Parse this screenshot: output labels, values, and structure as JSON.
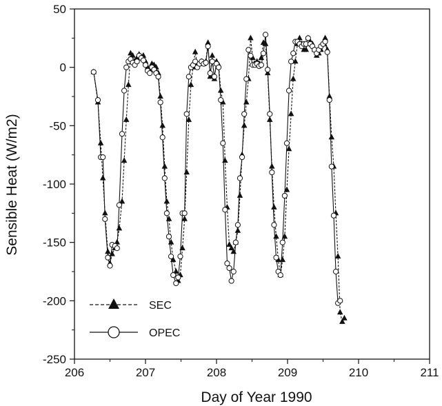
{
  "chart_data": {
    "type": "line",
    "title": "",
    "xlabel": "Day of Year 1990",
    "ylabel": "Sensible Heat (W/m2)",
    "xlim": [
      206,
      211
    ],
    "ylim": [
      -250,
      50
    ],
    "xticks": [
      206,
      207,
      208,
      209,
      210,
      211
    ],
    "yticks": [
      -250,
      -200,
      -150,
      -100,
      -50,
      0,
      50
    ],
    "grid": false,
    "legend": {
      "position": "lower-left"
    },
    "series": [
      {
        "name": "SEC",
        "marker": "filled-triangle",
        "line_style": "dashed",
        "color": "#111111",
        "points": [
          [
            206.27,
            -4
          ],
          [
            206.33,
            -30
          ],
          [
            206.37,
            -65
          ],
          [
            206.4,
            -95
          ],
          [
            206.43,
            -125
          ],
          [
            206.47,
            -158
          ],
          [
            206.5,
            -168
          ],
          [
            206.53,
            -160
          ],
          [
            206.57,
            -155
          ],
          [
            206.6,
            -150
          ],
          [
            206.63,
            -138
          ],
          [
            206.67,
            -115
          ],
          [
            206.7,
            -80
          ],
          [
            206.73,
            -45
          ],
          [
            206.76,
            -15
          ],
          [
            206.79,
            12
          ],
          [
            206.82,
            10
          ],
          [
            206.85,
            5
          ],
          [
            206.88,
            8
          ],
          [
            206.91,
            11
          ],
          [
            206.94,
            9
          ],
          [
            206.97,
            10
          ],
          [
            207.0,
            5
          ],
          [
            207.03,
            0
          ],
          [
            207.06,
            -3
          ],
          [
            207.09,
            3
          ],
          [
            207.12,
            2
          ],
          [
            207.15,
            0
          ],
          [
            207.18,
            -5
          ],
          [
            207.21,
            -25
          ],
          [
            207.24,
            -50
          ],
          [
            207.27,
            -85
          ],
          [
            207.3,
            -115
          ],
          [
            207.33,
            -130
          ],
          [
            207.36,
            -150
          ],
          [
            207.39,
            -165
          ],
          [
            207.43,
            -175
          ],
          [
            207.46,
            -183
          ],
          [
            207.49,
            -178
          ],
          [
            207.52,
            -155
          ],
          [
            207.55,
            -130
          ],
          [
            207.58,
            -90
          ],
          [
            207.61,
            -45
          ],
          [
            207.64,
            -15
          ],
          [
            207.67,
            0
          ],
          [
            207.7,
            13
          ],
          [
            207.73,
            2
          ],
          [
            207.76,
            3
          ],
          [
            207.79,
            5
          ],
          [
            207.82,
            3
          ],
          [
            207.85,
            5
          ],
          [
            207.88,
            21
          ],
          [
            207.91,
            -8
          ],
          [
            207.94,
            10
          ],
          [
            207.97,
            -10
          ],
          [
            208.0,
            5
          ],
          [
            208.03,
            2
          ],
          [
            208.06,
            -20
          ],
          [
            208.09,
            -30
          ],
          [
            208.12,
            -80
          ],
          [
            208.15,
            -120
          ],
          [
            208.18,
            -152
          ],
          [
            208.21,
            -155
          ],
          [
            208.24,
            -158
          ],
          [
            208.27,
            -150
          ],
          [
            208.3,
            -140
          ],
          [
            208.33,
            -110
          ],
          [
            208.36,
            -75
          ],
          [
            208.39,
            -50
          ],
          [
            208.42,
            -30
          ],
          [
            208.45,
            -10
          ],
          [
            208.48,
            25
          ],
          [
            208.51,
            8
          ],
          [
            208.54,
            3
          ],
          [
            208.57,
            5
          ],
          [
            208.6,
            3
          ],
          [
            208.63,
            8
          ],
          [
            208.66,
            21
          ],
          [
            208.69,
            20
          ],
          [
            208.72,
            -5
          ],
          [
            208.75,
            -45
          ],
          [
            208.78,
            -85
          ],
          [
            208.81,
            -120
          ],
          [
            208.84,
            -145
          ],
          [
            208.87,
            -165
          ],
          [
            208.9,
            -178
          ],
          [
            208.93,
            -165
          ],
          [
            208.96,
            -145
          ],
          [
            208.99,
            -105
          ],
          [
            209.02,
            -70
          ],
          [
            209.05,
            -40
          ],
          [
            209.08,
            -10
          ],
          [
            209.11,
            5
          ],
          [
            209.14,
            20
          ],
          [
            209.17,
            25
          ],
          [
            209.2,
            20
          ],
          [
            209.23,
            15
          ],
          [
            209.26,
            15
          ],
          [
            209.29,
            25
          ],
          [
            209.32,
            22
          ],
          [
            209.35,
            20
          ],
          [
            209.38,
            15
          ],
          [
            209.41,
            10
          ],
          [
            209.44,
            12
          ],
          [
            209.47,
            15
          ],
          [
            209.5,
            20
          ],
          [
            209.53,
            25
          ],
          [
            209.56,
            15
          ],
          [
            209.59,
            -25
          ],
          [
            209.62,
            -60
          ],
          [
            209.65,
            -85
          ],
          [
            209.68,
            -125
          ],
          [
            209.71,
            -162
          ],
          [
            209.74,
            -210
          ],
          [
            209.77,
            -218
          ],
          [
            209.8,
            -215
          ]
        ]
      },
      {
        "name": "OPEC",
        "marker": "open-circle",
        "line_style": "solid",
        "color": "#111111",
        "points": [
          [
            206.27,
            -4
          ],
          [
            206.33,
            -28
          ],
          [
            206.37,
            -77
          ],
          [
            206.4,
            -77
          ],
          [
            206.43,
            -130
          ],
          [
            206.47,
            -163
          ],
          [
            206.5,
            -170
          ],
          [
            206.53,
            -152
          ],
          [
            206.57,
            -153
          ],
          [
            206.6,
            -155
          ],
          [
            206.63,
            -118
          ],
          [
            206.67,
            -57
          ],
          [
            206.7,
            -20
          ],
          [
            206.73,
            0
          ],
          [
            206.76,
            5
          ],
          [
            206.79,
            7
          ],
          [
            206.82,
            4
          ],
          [
            206.85,
            2
          ],
          [
            206.88,
            5
          ],
          [
            206.91,
            10
          ],
          [
            206.94,
            8
          ],
          [
            206.97,
            6
          ],
          [
            207.0,
            2
          ],
          [
            207.03,
            -3
          ],
          [
            207.06,
            -5
          ],
          [
            207.09,
            0
          ],
          [
            207.12,
            -2
          ],
          [
            207.15,
            -5
          ],
          [
            207.18,
            -8
          ],
          [
            207.21,
            -30
          ],
          [
            207.24,
            -60
          ],
          [
            207.27,
            -95
          ],
          [
            207.3,
            -125
          ],
          [
            207.33,
            -145
          ],
          [
            207.36,
            -162
          ],
          [
            207.39,
            -178
          ],
          [
            207.43,
            -185
          ],
          [
            207.46,
            -180
          ],
          [
            207.49,
            -162
          ],
          [
            207.52,
            -125
          ],
          [
            207.55,
            -125
          ],
          [
            207.58,
            -40
          ],
          [
            207.61,
            -8
          ],
          [
            207.64,
            0
          ],
          [
            207.67,
            2
          ],
          [
            207.7,
            5
          ],
          [
            207.73,
            0
          ],
          [
            207.76,
            3
          ],
          [
            207.79,
            5
          ],
          [
            207.82,
            3
          ],
          [
            207.85,
            4
          ],
          [
            207.88,
            18
          ],
          [
            207.91,
            -5
          ],
          [
            207.94,
            5
          ],
          [
            207.97,
            -8
          ],
          [
            208.0,
            3
          ],
          [
            208.03,
            0
          ],
          [
            208.06,
            -28
          ],
          [
            208.09,
            -65
          ],
          [
            208.12,
            -122
          ],
          [
            208.15,
            -168
          ],
          [
            208.18,
            -172
          ],
          [
            208.21,
            -183
          ],
          [
            208.24,
            -175
          ],
          [
            208.27,
            -150
          ],
          [
            208.3,
            -135
          ],
          [
            208.33,
            -95
          ],
          [
            208.36,
            -77
          ],
          [
            208.39,
            -40
          ],
          [
            208.42,
            -10
          ],
          [
            208.45,
            15
          ],
          [
            208.48,
            10
          ],
          [
            208.51,
            2
          ],
          [
            208.54,
            2
          ],
          [
            208.57,
            3
          ],
          [
            208.6,
            1
          ],
          [
            208.63,
            2
          ],
          [
            208.66,
            12
          ],
          [
            208.69,
            28
          ],
          [
            208.72,
            -2
          ],
          [
            208.75,
            -40
          ],
          [
            208.78,
            -90
          ],
          [
            208.81,
            -135
          ],
          [
            208.84,
            -163
          ],
          [
            208.87,
            -175
          ],
          [
            208.9,
            -178
          ],
          [
            208.93,
            -150
          ],
          [
            208.96,
            -110
          ],
          [
            208.99,
            -65
          ],
          [
            209.02,
            -20
          ],
          [
            209.05,
            5
          ],
          [
            209.08,
            12
          ],
          [
            209.11,
            22
          ],
          [
            209.14,
            22
          ],
          [
            209.17,
            20
          ],
          [
            209.2,
            18
          ],
          [
            209.23,
            20
          ],
          [
            209.26,
            20
          ],
          [
            209.29,
            25
          ],
          [
            209.32,
            20
          ],
          [
            209.35,
            18
          ],
          [
            209.38,
            15
          ],
          [
            209.41,
            12
          ],
          [
            209.44,
            15
          ],
          [
            209.47,
            18
          ],
          [
            209.5,
            20
          ],
          [
            209.53,
            22
          ],
          [
            209.56,
            13
          ],
          [
            209.59,
            -28
          ],
          [
            209.62,
            -85
          ],
          [
            209.65,
            -127
          ],
          [
            209.68,
            -175
          ],
          [
            209.71,
            -202
          ],
          [
            209.74,
            -200
          ]
        ]
      }
    ]
  }
}
